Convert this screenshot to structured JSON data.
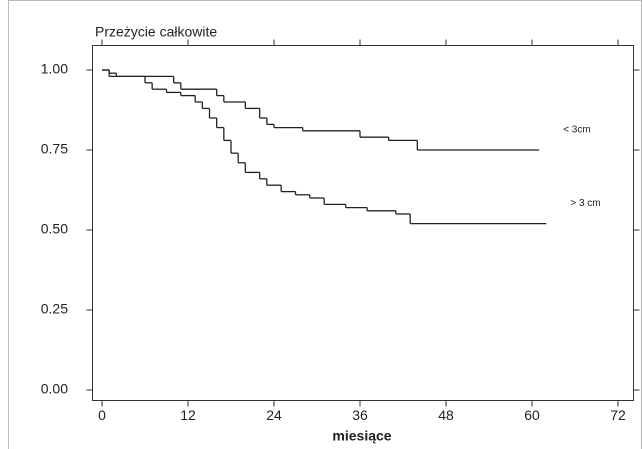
{
  "chart_data": {
    "type": "step",
    "title": "Przeżycie całkowite",
    "x_label": "miesiące",
    "xlim": [
      0,
      72
    ],
    "xticks": [
      0,
      12,
      24,
      36,
      48,
      60,
      72
    ],
    "ylim": [
      0,
      1
    ],
    "yticks": [
      {
        "value": 0,
        "label": "0.00"
      },
      {
        "value": 0.25,
        "label": "0.25"
      },
      {
        "value": 0.5,
        "label": "0.50"
      },
      {
        "value": 0.75,
        "label": "0.75"
      },
      {
        "value": 1,
        "label": "1.00"
      }
    ],
    "series": [
      {
        "name": "< 3cm",
        "color": "#222222",
        "x": [
          0,
          1,
          10,
          11,
          16,
          17,
          20,
          22,
          23,
          24,
          28,
          36,
          40,
          44,
          61
        ],
        "values": [
          1.0,
          0.98,
          0.96,
          0.94,
          0.92,
          0.9,
          0.88,
          0.85,
          0.83,
          0.82,
          0.81,
          0.79,
          0.78,
          0.75,
          0.75
        ]
      },
      {
        "name": "> 3 cm",
        "color": "#222222",
        "x": [
          0,
          1,
          2,
          6,
          7,
          9,
          11,
          13,
          14,
          15,
          16,
          17,
          18,
          19,
          20,
          22,
          23,
          25,
          27,
          29,
          31,
          34,
          37,
          41,
          43,
          62
        ],
        "values": [
          1.0,
          0.99,
          0.98,
          0.96,
          0.94,
          0.93,
          0.92,
          0.9,
          0.88,
          0.85,
          0.82,
          0.78,
          0.74,
          0.71,
          0.68,
          0.66,
          0.64,
          0.62,
          0.61,
          0.6,
          0.58,
          0.57,
          0.56,
          0.55,
          0.52,
          0.52
        ]
      }
    ]
  }
}
